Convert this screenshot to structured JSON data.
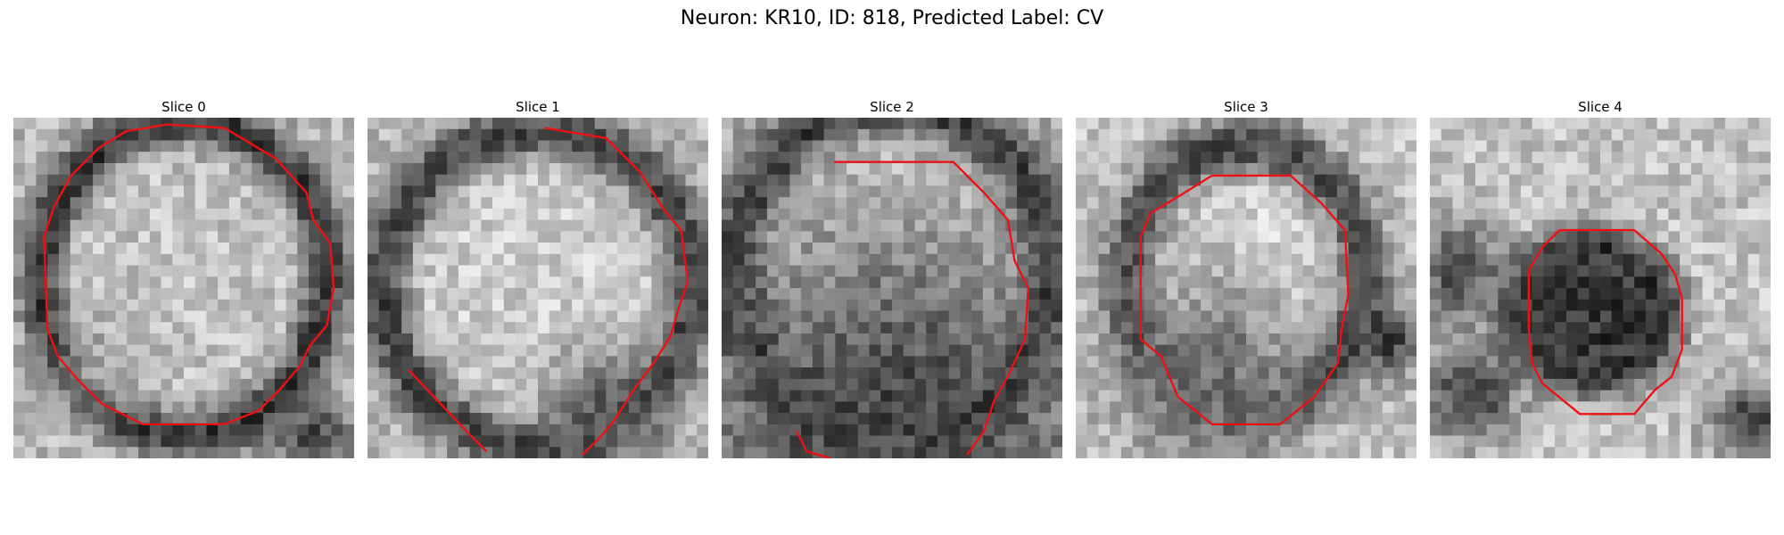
{
  "figure": {
    "title": "Neuron: KR10, ID: 818, Predicted Label: CV",
    "contour_color": "#ee1111",
    "panels": [
      {
        "title": "Slice 0"
      },
      {
        "title": "Slice 1"
      },
      {
        "title": "Slice 2"
      },
      {
        "title": "Slice 3"
      },
      {
        "title": "Slice 4"
      }
    ]
  }
}
